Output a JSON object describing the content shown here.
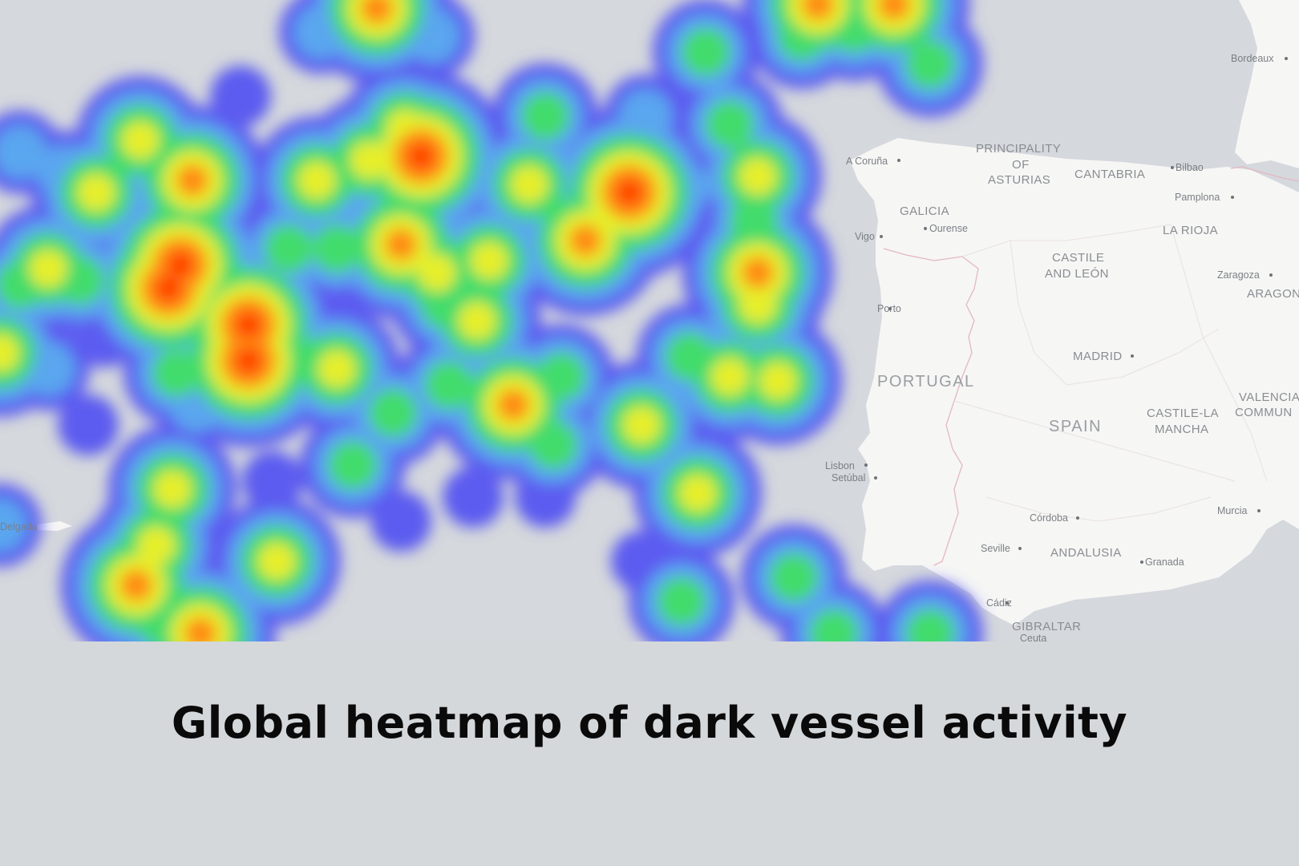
{
  "caption": "Global heatmap of dark vessel activity",
  "map": {
    "colors": {
      "ocean": "#d5d8dc",
      "land": "#f6f6f5",
      "border": "#e3b8c2",
      "heat_low": "#5a55f0",
      "heat_high": "#ff2a00"
    },
    "labels": {
      "bordeaux": "Bordeaux",
      "principality": "PRINCIPALITY",
      "of": "OF",
      "asturias": "ASTURIAS",
      "cantabria": "CANTABRIA",
      "bilbao": "Bilbao",
      "a_coruna": "A Coruña",
      "galicia": "GALICIA",
      "ourense": "Ourense",
      "pamplona": "Pamplona",
      "la_rioja": "LA RIOJA",
      "vigo": "Vigo",
      "castile_1": "CASTILE",
      "castile_2": "AND LEÓN",
      "zaragoza": "Zaragoza",
      "aragon": "ARAGON",
      "porto": "Porto",
      "madrid": "MADRID",
      "portugal": "PORTUGAL",
      "valencia_1": "VALENCIA",
      "valencia_2": "COMMUN",
      "spain": "SPAIN",
      "clm_1": "CASTILE-LA",
      "clm_2": "MANCHA",
      "lisbon": "Lisbon",
      "setubal": "Setúbal",
      "murcia": "Murcia",
      "cordoba": "Córdoba",
      "seville": "Seville",
      "andalusia": "ANDALUSIA",
      "granada": "Granada",
      "cadiz": "Cádiz",
      "gibraltar": "GIBRALTAR",
      "ceuta": "Ceuta",
      "ponta_delgada": "Delgada"
    }
  }
}
